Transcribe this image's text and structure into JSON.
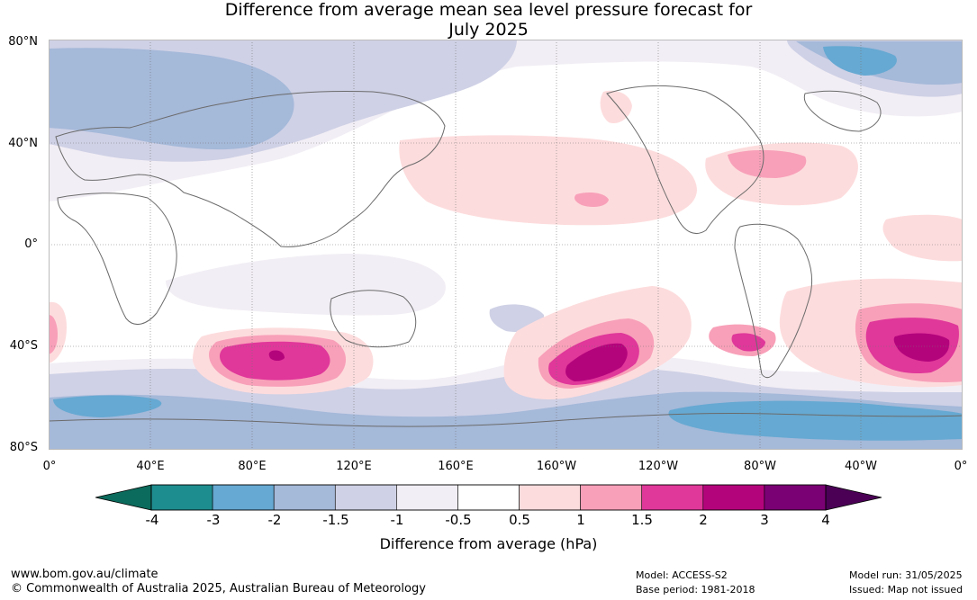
{
  "title_line1": "Difference from average mean sea level pressure forecast for",
  "title_line2": "July 2025",
  "lat_labels": [
    "80°N",
    "40°N",
    "0°",
    "40°S",
    "80°S"
  ],
  "lon_labels": [
    "0°",
    "40°E",
    "80°E",
    "120°E",
    "160°E",
    "160°W",
    "120°W",
    "80°W",
    "40°W",
    "0°"
  ],
  "colorbar": {
    "label": "Difference from average (hPa)",
    "ticks": [
      "-4",
      "-3",
      "-2",
      "-1.5",
      "-1",
      "-0.5",
      "0.5",
      "1",
      "1.5",
      "2",
      "3",
      "4"
    ],
    "colors": [
      "#1e8d8f",
      "#66a9d2",
      "#a5b9d9",
      "#cfd1e6",
      "#f2eef5",
      "#ffffff",
      "#fddcdd",
      "#f8a0b9",
      "#e0379a",
      "#b4047c",
      "#7a0174"
    ],
    "under_color": "#0b6b5c",
    "over_color": "#4b0056"
  },
  "footer": {
    "url": "www.bom.gov.au/climate",
    "copyright": "© Commonwealth of Australia 2025, Australian Bureau of Meteorology",
    "model": "Model: ACCESS-S2",
    "base_period": "Base period: 1981-2018",
    "model_run": "Model run: 31/05/2025",
    "issued": "Issued: Map not issued"
  }
}
